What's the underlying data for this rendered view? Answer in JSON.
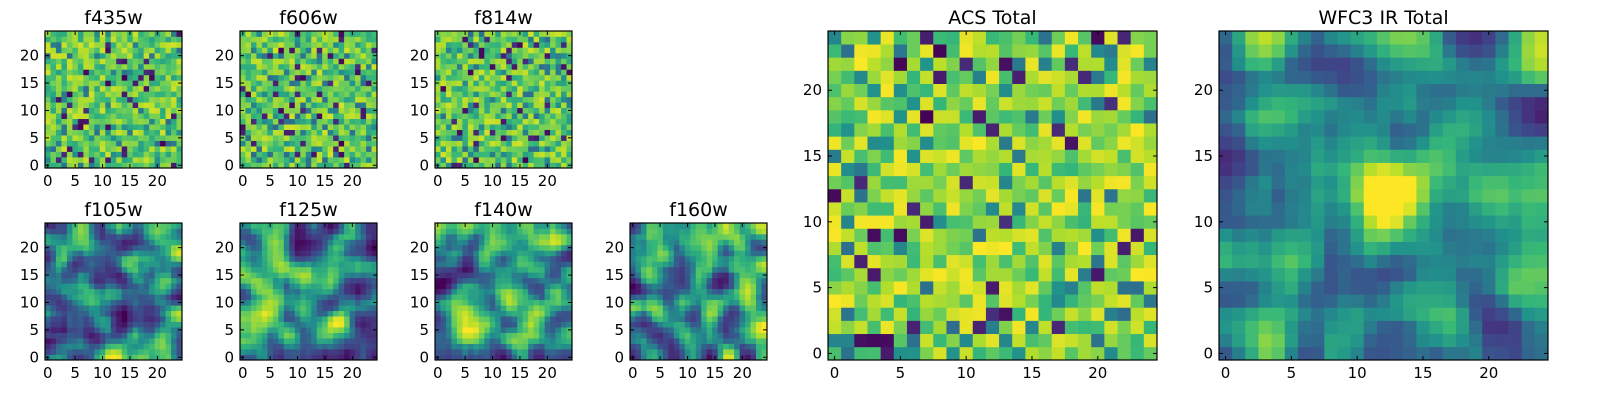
{
  "chart_data": [
    {
      "id": "f435w",
      "type": "heatmap",
      "title": "f435w",
      "grid": [
        25,
        25
      ],
      "xlim": [
        0,
        24
      ],
      "ylim": [
        0,
        24
      ],
      "xticks": [
        0,
        5,
        10,
        15,
        20
      ],
      "yticks": [
        0,
        5,
        10,
        15,
        20
      ],
      "pattern": "noise",
      "seed": 11,
      "colormap": "viridis"
    },
    {
      "id": "f606w",
      "type": "heatmap",
      "title": "f606w",
      "grid": [
        25,
        25
      ],
      "xlim": [
        0,
        24
      ],
      "ylim": [
        0,
        24
      ],
      "xticks": [
        0,
        5,
        10,
        15,
        20
      ],
      "yticks": [
        0,
        5,
        10,
        15,
        20
      ],
      "pattern": "noise",
      "seed": 23,
      "colormap": "viridis"
    },
    {
      "id": "f814w",
      "type": "heatmap",
      "title": "f814w",
      "grid": [
        25,
        25
      ],
      "xlim": [
        0,
        24
      ],
      "ylim": [
        0,
        24
      ],
      "xticks": [
        0,
        5,
        10,
        15,
        20
      ],
      "yticks": [
        0,
        5,
        10,
        15,
        20
      ],
      "pattern": "noise",
      "seed": 37,
      "colormap": "viridis"
    },
    {
      "id": "f105w",
      "type": "heatmap",
      "title": "f105w",
      "grid": [
        25,
        25
      ],
      "xlim": [
        0,
        24
      ],
      "ylim": [
        0,
        24
      ],
      "xticks": [
        0,
        5,
        10,
        15,
        20
      ],
      "yticks": [
        0,
        5,
        10,
        15,
        20
      ],
      "pattern": "smooth",
      "seed": 41,
      "colormap": "viridis"
    },
    {
      "id": "f125w",
      "type": "heatmap",
      "title": "f125w",
      "grid": [
        25,
        25
      ],
      "xlim": [
        0,
        24
      ],
      "ylim": [
        0,
        24
      ],
      "xticks": [
        0,
        5,
        10,
        15,
        20
      ],
      "yticks": [
        0,
        5,
        10,
        15,
        20
      ],
      "pattern": "smooth",
      "seed": 53,
      "colormap": "viridis"
    },
    {
      "id": "f140w",
      "type": "heatmap",
      "title": "f140w",
      "grid": [
        25,
        25
      ],
      "xlim": [
        0,
        24
      ],
      "ylim": [
        0,
        24
      ],
      "xticks": [
        0,
        5,
        10,
        15,
        20
      ],
      "yticks": [
        0,
        5,
        10,
        15,
        20
      ],
      "pattern": "smooth",
      "seed": 67,
      "colormap": "viridis"
    },
    {
      "id": "f160w",
      "type": "heatmap",
      "title": "f160w",
      "grid": [
        25,
        25
      ],
      "xlim": [
        0,
        24
      ],
      "ylim": [
        0,
        24
      ],
      "xticks": [
        0,
        5,
        10,
        15,
        20
      ],
      "yticks": [
        0,
        5,
        10,
        15,
        20
      ],
      "pattern": "smooth",
      "seed": 79,
      "colormap": "viridis"
    },
    {
      "id": "acs-total",
      "type": "heatmap",
      "title": "ACS Total",
      "grid": [
        25,
        25
      ],
      "xlim": [
        0,
        24
      ],
      "ylim": [
        0,
        24
      ],
      "xticks": [
        0,
        5,
        10,
        15,
        20
      ],
      "yticks": [
        0,
        5,
        10,
        15,
        20
      ],
      "pattern": "noise-bright",
      "seed": 97,
      "colormap": "viridis"
    },
    {
      "id": "wfc3-ir-total",
      "type": "heatmap",
      "title": "WFC3 IR Total",
      "grid": [
        25,
        25
      ],
      "xlim": [
        0,
        24
      ],
      "ylim": [
        0,
        24
      ],
      "xticks": [
        0,
        5,
        10,
        15,
        20
      ],
      "yticks": [
        0,
        5,
        10,
        15,
        20
      ],
      "pattern": "smooth-source",
      "seed": 113,
      "colormap": "viridis"
    }
  ]
}
